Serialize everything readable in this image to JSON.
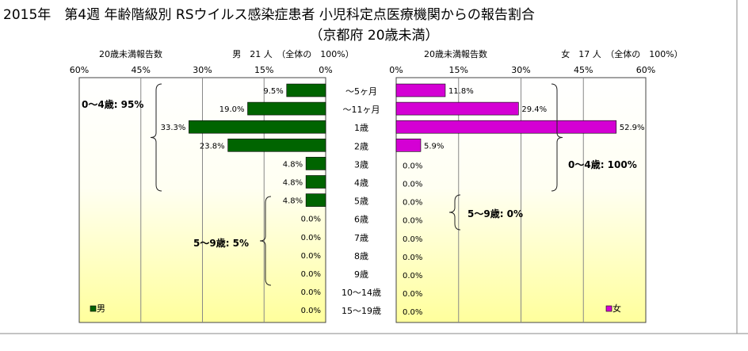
{
  "title": "2015年　第4週 年齢階級別 RSウイルス感染症患者 小児科定点医療機関からの報告割合",
  "subtitle": "（京都府 20歳未満）",
  "chart_data": {
    "type": "bar",
    "categories": [
      "～5ヶ月",
      "～11ヶ月",
      "1歳",
      "2歳",
      "3歳",
      "4歳",
      "5歳",
      "6歳",
      "7歳",
      "8歳",
      "9歳",
      "10～14歳",
      "15～19歳"
    ],
    "xlim": [
      0,
      60
    ],
    "ticks": [
      60,
      45,
      30,
      15,
      0
    ],
    "tick_labels": [
      "60%",
      "45%",
      "30%",
      "15%",
      "0%"
    ],
    "grid": true,
    "series": [
      {
        "name": "男",
        "panel": "left",
        "header_left": "20歳未満報告数",
        "header_right": "男　21 人　（全体の　100%）",
        "color": "#006400",
        "values": [
          9.5,
          19.0,
          33.3,
          23.8,
          4.8,
          4.8,
          4.8,
          0.0,
          0.0,
          0.0,
          0.0,
          0.0,
          0.0
        ],
        "labels": [
          "9.5%",
          "19.0%",
          "33.3%",
          "23.8%",
          "4.8%",
          "4.8%",
          "4.8%",
          "0.0%",
          "0.0%",
          "0.0%",
          "0.0%",
          "0.0%",
          "0.0%"
        ],
        "legend": "男",
        "annotations": [
          "0～4歳: 95%",
          "5～9歳: 5%"
        ]
      },
      {
        "name": "女",
        "panel": "right",
        "header_left": "20歳未満報告数",
        "header_right": "女　17 人　（全体の　100%）",
        "color": "#d400d4",
        "values": [
          11.8,
          29.4,
          52.9,
          5.9,
          0.0,
          0.0,
          0.0,
          0.0,
          0.0,
          0.0,
          0.0,
          0.0,
          0.0
        ],
        "labels": [
          "11.8%",
          "29.4%",
          "52.9%",
          "5.9%",
          "0.0%",
          "0.0%",
          "0.0%",
          "0.0%",
          "0.0%",
          "0.0%",
          "0.0%",
          "0.0%",
          "0.0%"
        ],
        "legend": "女",
        "annotations": [
          "0～4歳: 100%",
          "5～9歳: 0%"
        ]
      }
    ]
  }
}
